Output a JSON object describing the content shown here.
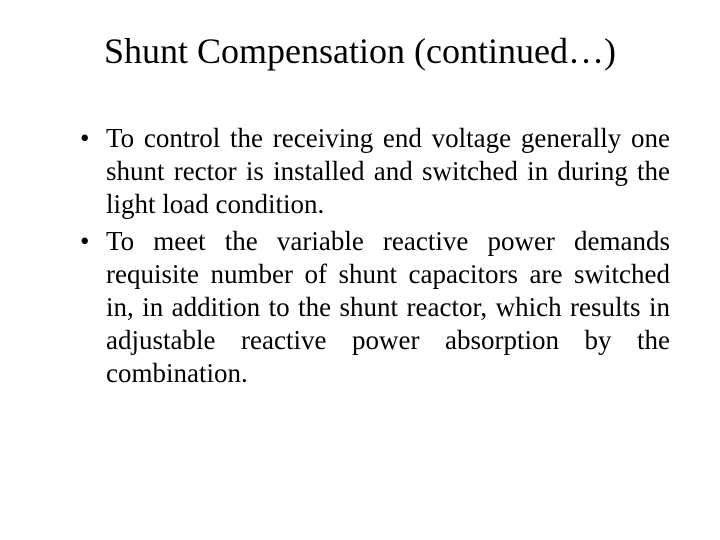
{
  "slide": {
    "title": "Shunt Compensation (continued…)",
    "bullets": [
      "To control the receiving end voltage generally one shunt rector is installed and switched in during the light load condition.",
      "To meet the variable reactive power demands requisite number of shunt capacitors are switched in, in addition to the shunt reactor, which results in adjustable reactive power absorption by the combination."
    ],
    "background_color": "#ffffff",
    "text_color": "#000000",
    "title_fontsize": 36,
    "body_fontsize": 27,
    "font_family": "Times New Roman"
  }
}
